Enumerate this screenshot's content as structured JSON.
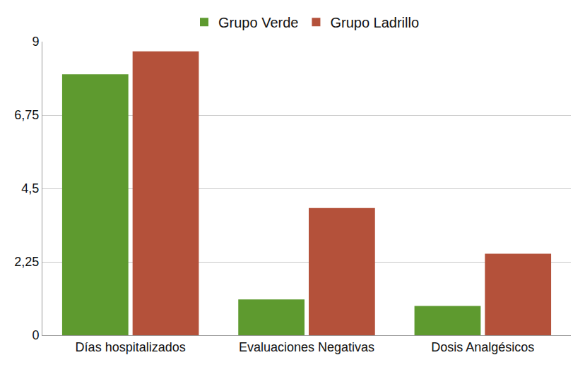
{
  "chart_data": {
    "type": "bar",
    "categories": [
      "Días hospitalizados",
      "Evaluaciones Negativas",
      "Dosis Analgésicos"
    ],
    "series": [
      {
        "name": "Grupo Verde",
        "color": "#5e9a2f",
        "values": [
          8.0,
          1.1,
          0.9
        ]
      },
      {
        "name": "Grupo Ladrillo",
        "color": "#b4513a",
        "values": [
          8.7,
          3.9,
          2.5
        ]
      }
    ],
    "ylim": [
      0,
      9
    ],
    "yticks": [
      0,
      {
        "value": 2.25,
        "label": "2,25"
      },
      {
        "value": 4.5,
        "label": "4,5"
      },
      {
        "value": 6.75,
        "label": "6,75"
      },
      9
    ],
    "grid": true,
    "legend": "top"
  }
}
